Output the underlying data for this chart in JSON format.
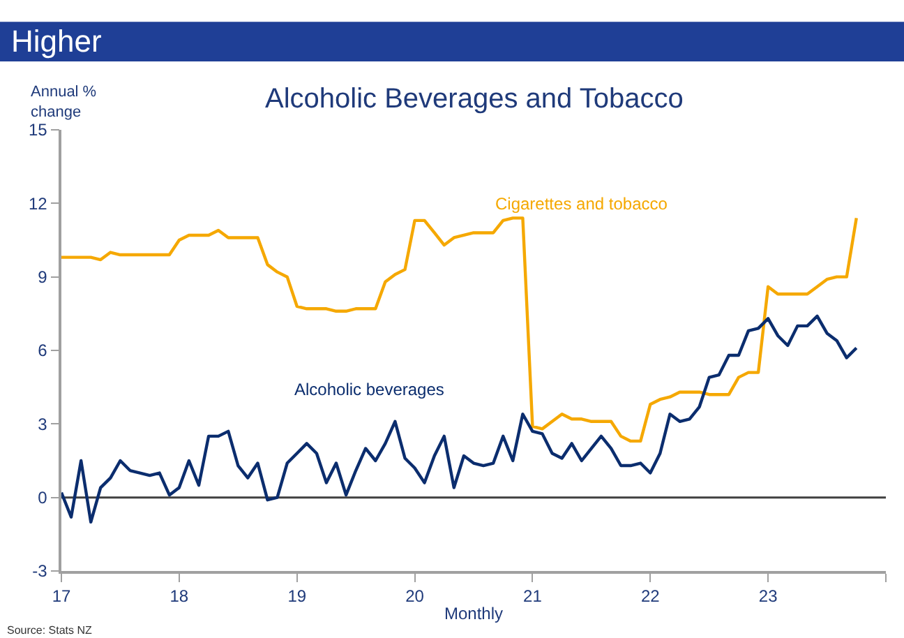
{
  "chart_data": {
    "type": "line",
    "title": "Higher",
    "subtitle": "Alcoholic Beverages and Tobacco",
    "xlabel": "Monthly",
    "ylabel": "Annual %\nchange",
    "annotations": [
      "Source: Stats NZ"
    ],
    "x": [
      17.0,
      17.083,
      17.167,
      17.25,
      17.333,
      17.417,
      17.5,
      17.583,
      17.667,
      17.75,
      17.833,
      17.917,
      18.0,
      18.083,
      18.167,
      18.25,
      18.333,
      18.417,
      18.5,
      18.583,
      18.667,
      18.75,
      18.833,
      18.917,
      19.0,
      19.083,
      19.167,
      19.25,
      19.333,
      19.417,
      19.5,
      19.583,
      19.667,
      19.75,
      19.833,
      19.917,
      20.0,
      20.083,
      20.167,
      20.25,
      20.333,
      20.417,
      20.5,
      20.583,
      20.667,
      20.75,
      20.833,
      20.917,
      21.0,
      21.083,
      21.167,
      21.25,
      21.333,
      21.417,
      21.5,
      21.583,
      21.667,
      21.75,
      21.833,
      21.917,
      22.0,
      22.083,
      22.167,
      22.25,
      22.333,
      22.417,
      22.5,
      22.583,
      22.667,
      22.75,
      22.833,
      22.917,
      23.0,
      23.083,
      23.167,
      23.25,
      23.333,
      23.417,
      23.5,
      23.583,
      23.667,
      23.75
    ],
    "series": [
      {
        "name": "Cigarettes and tobacco",
        "color": "#f5a800",
        "values": [
          9.8,
          9.8,
          9.8,
          9.8,
          9.7,
          10.0,
          9.9,
          9.9,
          9.9,
          9.9,
          9.9,
          9.9,
          10.5,
          10.7,
          10.7,
          10.7,
          10.9,
          10.6,
          10.6,
          10.6,
          10.6,
          9.5,
          9.2,
          9.0,
          7.8,
          7.7,
          7.7,
          7.7,
          7.6,
          7.6,
          7.7,
          7.7,
          7.7,
          8.8,
          9.1,
          9.3,
          11.3,
          11.3,
          10.8,
          10.3,
          10.6,
          10.7,
          10.8,
          10.8,
          10.8,
          11.3,
          11.4,
          11.4,
          2.9,
          2.8,
          3.1,
          3.4,
          3.2,
          3.2,
          3.1,
          3.1,
          3.1,
          2.5,
          2.3,
          2.3,
          3.8,
          4.0,
          4.1,
          4.3,
          4.3,
          4.3,
          4.2,
          4.2,
          4.2,
          4.9,
          5.1,
          5.1,
          8.6,
          8.3,
          8.3,
          8.3,
          8.3,
          8.6,
          8.9,
          9.0,
          9.0,
          11.4
        ]
      },
      {
        "name": "Alcoholic beverages",
        "color": "#0b2d6e",
        "values": [
          0.2,
          -0.8,
          1.5,
          -1.0,
          0.4,
          0.8,
          1.5,
          1.1,
          1.0,
          0.9,
          1.0,
          0.1,
          0.4,
          1.5,
          0.5,
          2.5,
          2.5,
          2.7,
          1.3,
          0.8,
          1.4,
          -0.1,
          0.0,
          1.4,
          1.8,
          2.2,
          1.8,
          0.6,
          1.4,
          0.1,
          1.1,
          2.0,
          1.5,
          2.2,
          3.1,
          1.6,
          1.2,
          0.6,
          1.7,
          2.5,
          0.4,
          1.7,
          1.4,
          1.3,
          1.4,
          2.5,
          1.5,
          3.4,
          2.7,
          2.6,
          1.8,
          1.6,
          2.2,
          1.5,
          2.0,
          2.5,
          2.0,
          1.3,
          1.3,
          1.4,
          1.0,
          1.8,
          3.4,
          3.1,
          3.2,
          3.7,
          4.9,
          5.0,
          5.8,
          5.8,
          6.8,
          6.9,
          7.3,
          6.6,
          6.2,
          7.0,
          7.0,
          7.4,
          6.7,
          6.4,
          5.7,
          6.1
        ]
      }
    ],
    "xlim": [
      17,
      24
    ],
    "xticks": [
      {
        "value": 17,
        "label": "17"
      },
      {
        "value": 18,
        "label": "18"
      },
      {
        "value": 19,
        "label": "19"
      },
      {
        "value": 20,
        "label": "20"
      },
      {
        "value": 21,
        "label": "21"
      },
      {
        "value": 22,
        "label": "22"
      },
      {
        "value": 23,
        "label": "23"
      },
      {
        "value": 24,
        "label": null
      }
    ],
    "ylim": [
      -3,
      15
    ],
    "yticks": [
      -3,
      0,
      3,
      6,
      9,
      12,
      15
    ],
    "ref_lines": [
      {
        "axis": "y",
        "value": 0,
        "color": "#404040"
      }
    ],
    "grid": false,
    "legend": false,
    "marker": "none",
    "line_style": "solid"
  }
}
